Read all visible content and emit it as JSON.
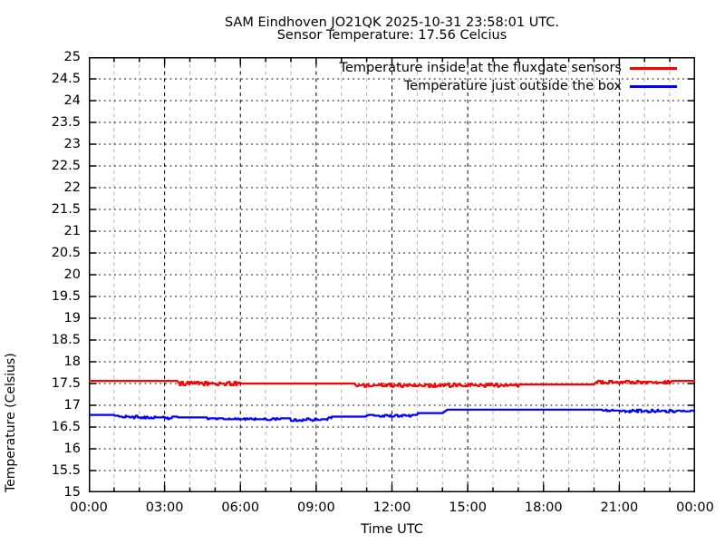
{
  "chart_data": {
    "type": "line",
    "title": "SAM Eindhoven JO21QK 2025-10-31 23:58:01 UTC.",
    "subtitle": "Sensor Temperature: 17.56 Celcius",
    "xlabel": "Time UTC",
    "ylabel": "Temperature (Celsius)",
    "xlim_hours": [
      0,
      24
    ],
    "ylim": [
      15,
      25
    ],
    "y_tick_step": 0.5,
    "x_tick_hours": [
      0,
      3,
      6,
      9,
      12,
      15,
      18,
      21,
      24
    ],
    "x_tick_labels": [
      "00:00",
      "03:00",
      "06:00",
      "09:00",
      "12:00",
      "15:00",
      "18:00",
      "21:00",
      "00:00"
    ],
    "x_minor_step_hours": 1,
    "grid": true,
    "legend_position": "top-right-inside",
    "grid_major_color": "#000000",
    "grid_minor_color": "#b3b3b3",
    "series": [
      {
        "name": "Temperature inside at the fluxgate sensors",
        "color": "#ff0000",
        "breakpoints": [
          [
            0,
            17.55
          ],
          [
            3.5,
            17.55
          ],
          [
            3.6,
            17.5
          ],
          [
            10.5,
            17.5
          ],
          [
            10.6,
            17.46
          ],
          [
            17.0,
            17.46
          ],
          [
            17.1,
            17.49
          ],
          [
            20.0,
            17.49
          ],
          [
            20.1,
            17.53
          ],
          [
            23.0,
            17.53
          ],
          [
            23.1,
            17.56
          ],
          [
            24,
            17.56
          ]
        ],
        "noise_regions": [
          {
            "from": 3.6,
            "to": 6.0,
            "amp": 0.05,
            "bias": 0
          },
          {
            "from": 10.6,
            "to": 17.0,
            "amp": 0.035,
            "bias": 0
          },
          {
            "from": 20.1,
            "to": 23.0,
            "amp": 0.03,
            "bias": 0
          }
        ]
      },
      {
        "name": "Temperature just outside the box",
        "color": "#0000ff",
        "breakpoints": [
          [
            0,
            16.78
          ],
          [
            1,
            16.77
          ],
          [
            2,
            16.75
          ],
          [
            3.5,
            16.73
          ],
          [
            5,
            16.71
          ],
          [
            9.4,
            16.7
          ],
          [
            9.6,
            16.73
          ],
          [
            10.9,
            16.73
          ],
          [
            11.1,
            16.78
          ],
          [
            12.8,
            16.78
          ],
          [
            13.0,
            16.82
          ],
          [
            14.0,
            16.82
          ],
          [
            14.2,
            16.9
          ],
          [
            24,
            16.9
          ]
        ],
        "noise_regions": [
          {
            "from": 1.2,
            "to": 3.3,
            "amp": 0.05,
            "bias": -1
          },
          {
            "from": 4.7,
            "to": 7.6,
            "amp": 0.04,
            "bias": -1
          },
          {
            "from": 8.0,
            "to": 9.6,
            "amp": 0.07,
            "bias": -1
          },
          {
            "from": 11.3,
            "to": 13.0,
            "amp": 0.04,
            "bias": -1
          },
          {
            "from": 20.3,
            "to": 24.0,
            "amp": 0.06,
            "bias": -1
          }
        ]
      }
    ]
  }
}
